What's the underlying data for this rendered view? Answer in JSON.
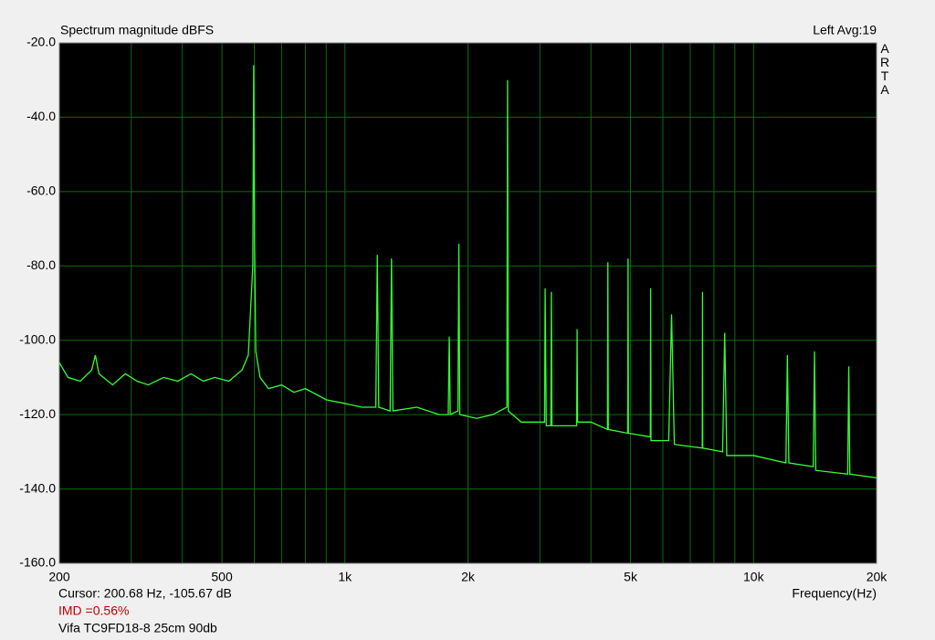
{
  "chart_data": {
    "type": "line",
    "title": "Spectrum magnitude dBFS",
    "channel": "Left  Avg:19",
    "brand": "ARTA",
    "xlabel": "Frequency(Hz)",
    "cursor": "Cursor: 200.68 Hz, -105.67 dB",
    "imd": "IMD =0.56%",
    "description": "Vifa TC9FD18-8 25cm 90db",
    "xscale": "log",
    "xlim": [
      200,
      20000
    ],
    "ylim": [
      -160,
      -20
    ],
    "grid": true,
    "xticks": [
      200,
      500,
      {
        "value": 1000,
        "label": "1k"
      },
      {
        "value": 2000,
        "label": "2k"
      },
      {
        "value": 5000,
        "label": "5k"
      },
      {
        "value": 10000,
        "label": "10k"
      },
      {
        "value": 20000,
        "label": "20k"
      }
    ],
    "xminor": [
      300,
      400,
      600,
      700,
      800,
      900,
      3000,
      4000,
      6000,
      7000,
      8000,
      9000
    ],
    "yticks": [
      {
        "value": -20,
        "label": "-20.0"
      },
      {
        "value": -40,
        "label": "-40.0"
      },
      {
        "value": -60,
        "label": "-60.0"
      },
      {
        "value": -80,
        "label": "-80.0"
      },
      {
        "value": -100,
        "label": "-100.0"
      },
      {
        "value": -120,
        "label": "-120.0"
      },
      {
        "value": -140,
        "label": "-140.0"
      },
      {
        "value": -160,
        "label": "-160.0"
      }
    ],
    "x": [
      200,
      210,
      225,
      240,
      245,
      250,
      270,
      290,
      310,
      330,
      360,
      390,
      420,
      450,
      480,
      520,
      560,
      580,
      595,
      598,
      601,
      605,
      620,
      650,
      700,
      750,
      800,
      900,
      1000,
      1100,
      1190,
      1200,
      1210,
      1290,
      1300,
      1310,
      1500,
      1700,
      1790,
      1800,
      1810,
      1890,
      1900,
      1910,
      2100,
      2300,
      2490,
      2500,
      2510,
      2700,
      3080,
      3090,
      3110,
      3190,
      3200,
      3210,
      3690,
      3700,
      3710,
      4000,
      4390,
      4400,
      4410,
      4920,
      4930,
      4940,
      5590,
      5600,
      5610,
      6200,
      6300,
      6400,
      7490,
      7500,
      7510,
      8400,
      8500,
      8600,
      10000,
      12000,
      12100,
      12200,
      14000,
      14100,
      14200,
      17000,
      17100,
      17200,
      20000
    ],
    "series": [
      {
        "name": "Left",
        "color": "#33ff33",
        "values": [
          -106,
          -110,
          -111,
          -108,
          -104,
          -109,
          -112,
          -109,
          -111,
          -112,
          -110,
          -111,
          -109,
          -111,
          -110,
          -111,
          -108,
          -104,
          -80,
          -26,
          -74,
          -103,
          -110,
          -113,
          -112,
          -114,
          -113,
          -116,
          -117,
          -118,
          -118,
          -77,
          -118,
          -119,
          -78,
          -119,
          -118,
          -120,
          -120,
          -99,
          -120,
          -119,
          -74,
          -120,
          -121,
          -120,
          -118,
          -30,
          -119,
          -122,
          -122,
          -86,
          -123,
          -123,
          -87,
          -123,
          -123,
          -97,
          -122,
          -122,
          -124,
          -79,
          -124,
          -125,
          -78,
          -125,
          -126,
          -86,
          -127,
          -127,
          -93,
          -128,
          -129,
          -87,
          -129,
          -130,
          -98,
          -131,
          -131,
          -133,
          -104,
          -133,
          -134,
          -103,
          -135,
          -136,
          -107,
          -136,
          -137
        ]
      }
    ]
  }
}
